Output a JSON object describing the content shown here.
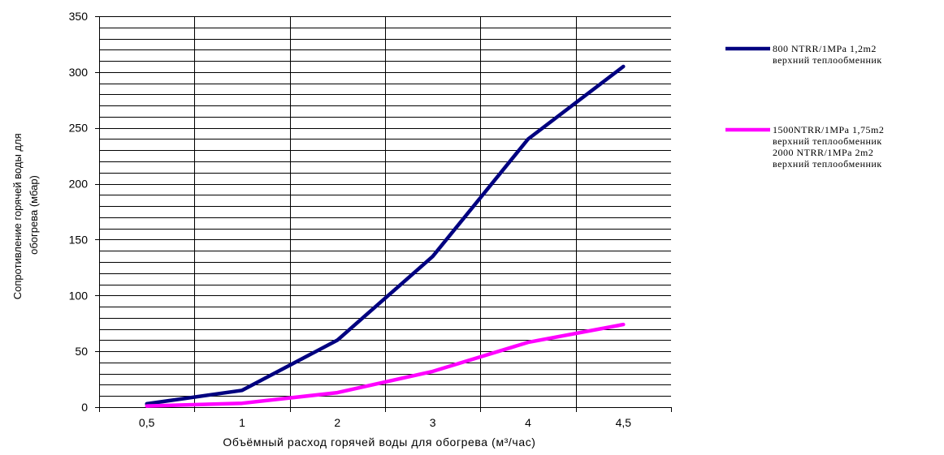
{
  "chart_data": {
    "type": "line",
    "categories": [
      "0,5",
      "1",
      "2",
      "3",
      "4",
      "4,5"
    ],
    "series": [
      {
        "color": "#000080",
        "values": [
          3,
          15,
          60,
          135,
          240,
          305
        ]
      },
      {
        "color": "#ff00ff",
        "values": [
          1,
          3.5,
          13,
          32,
          58,
          74
        ]
      }
    ],
    "legend": {
      "placement": "right",
      "entries": [
        {
          "color": "#000080",
          "lines": [
            "800 NTRR/1MPa  1,2m2",
            "верхний теплообменник"
          ]
        },
        {
          "color": "#ff00ff",
          "lines": [
            "1500NTRR/1MPa 1,75m2",
            "верхний теплообменник",
            "2000 NTRR/1MPa 2m2",
            "верхний теплообменник"
          ]
        }
      ]
    },
    "ylim": [
      0,
      350
    ],
    "ytick_step": 50,
    "yticks": [
      "0",
      "50",
      "100",
      "150",
      "200",
      "250",
      "300",
      "350"
    ],
    "ylabel_lines": [
      "Сопротивление горячей воды для",
      "обогрева  (мбар)"
    ],
    "xlabel": "Объёмный расход горячей воды для обогрева (м³/час)",
    "grid": true
  }
}
